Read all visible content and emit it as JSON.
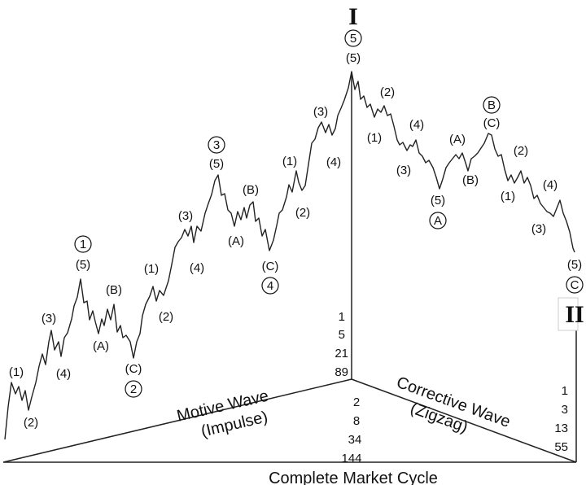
{
  "cycle_markers": {
    "top": "I",
    "bottom": "II"
  },
  "captions": {
    "motive_line1": "Motive Wave",
    "motive_line2": "(Impulse)",
    "corrective_line1": "Corrective Wave",
    "corrective_line2": "(Zigzag)",
    "complete": "Complete Market Cycle"
  },
  "fib_counts": {
    "peak": [
      "1",
      "5",
      "21",
      "89"
    ],
    "center": [
      "2",
      "8",
      "34",
      "144"
    ],
    "right": [
      "1",
      "3",
      "13",
      "55"
    ]
  },
  "labels": {
    "w1": "(1)",
    "w2": "(2)",
    "w3": "(3)",
    "w4": "(4)",
    "w5": "(5)",
    "wA": "(A)",
    "wB": "(B)",
    "wC": "(C)",
    "c1": "1",
    "c2": "2",
    "c3": "3",
    "c4": "4",
    "c5": "5",
    "cA": "A",
    "cB": "B",
    "cC": "C",
    "b_A": "(A)",
    "b_B": "(B)"
  }
}
